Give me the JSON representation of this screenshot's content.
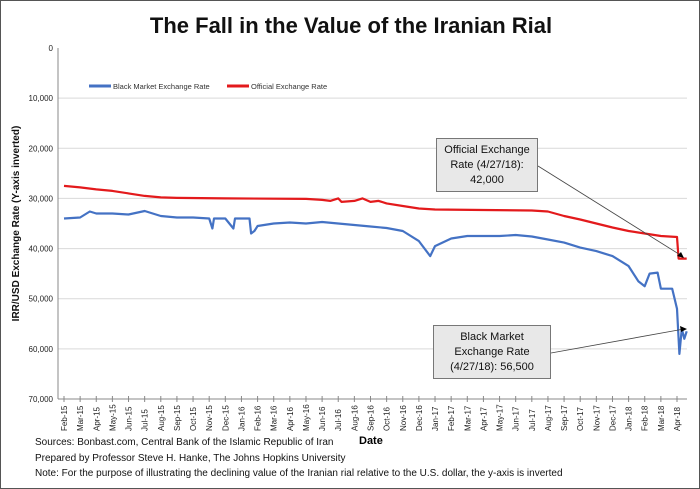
{
  "chart_data": {
    "type": "line",
    "title": "The Fall in the Value of the Iranian Rial",
    "xlabel": "Date",
    "ylabel": "IRR/USD Exchange  Rate (Y-axis inverted)",
    "ylim": [
      0,
      70000
    ],
    "y_inverted": true,
    "yticks": [
      "0",
      "10,000",
      "20,000",
      "30,000",
      "40,000",
      "50,000",
      "60,000",
      "70,000"
    ],
    "categories": [
      "Feb-15",
      "Mar-15",
      "Apr-15",
      "May-15",
      "Jun-15",
      "Jul-15",
      "Aug-15",
      "Sep-15",
      "Oct-15",
      "Nov-15",
      "Dec-15",
      "Jan-16",
      "Feb-16",
      "Mar-16",
      "Apr-16",
      "May-16",
      "Jun-16",
      "Jul-16",
      "Aug-16",
      "Sep-16",
      "Oct-16",
      "Nov-16",
      "Dec-16",
      "Jan-17",
      "Feb-17",
      "Mar-17",
      "Apr-17",
      "May-17",
      "Jun-17",
      "Jul-17",
      "Aug-17",
      "Sep-17",
      "Oct-17",
      "Nov-17",
      "Dec-17",
      "Jan-18",
      "Feb-18",
      "Mar-18",
      "Apr-18"
    ],
    "grid": true,
    "legend": "top-left",
    "series": [
      {
        "name": "Black Market Exchange Rate",
        "color": "#4472c4",
        "points": [
          [
            0,
            34000
          ],
          [
            1,
            33800
          ],
          [
            1.6,
            32600
          ],
          [
            2,
            33000
          ],
          [
            3,
            33000
          ],
          [
            4,
            33200
          ],
          [
            5,
            32500
          ],
          [
            6,
            33500
          ],
          [
            7,
            33800
          ],
          [
            8,
            33800
          ],
          [
            9,
            34000
          ],
          [
            9.2,
            36000
          ],
          [
            9.3,
            34000
          ],
          [
            10,
            34000
          ],
          [
            10.5,
            36000
          ],
          [
            10.6,
            34000
          ],
          [
            11,
            34000
          ],
          [
            11.5,
            34000
          ],
          [
            11.6,
            37000
          ],
          [
            11.8,
            36500
          ],
          [
            12,
            35500
          ],
          [
            13,
            35000
          ],
          [
            14,
            34800
          ],
          [
            15,
            35000
          ],
          [
            16,
            34700
          ],
          [
            17,
            35000
          ],
          [
            18,
            35300
          ],
          [
            19,
            35600
          ],
          [
            20,
            35900
          ],
          [
            21,
            36500
          ],
          [
            22,
            38500
          ],
          [
            22.7,
            41500
          ],
          [
            23,
            39500
          ],
          [
            24,
            38000
          ],
          [
            25,
            37500
          ],
          [
            26,
            37500
          ],
          [
            27,
            37500
          ],
          [
            28,
            37300
          ],
          [
            29,
            37600
          ],
          [
            30,
            38200
          ],
          [
            31,
            38800
          ],
          [
            32,
            39800
          ],
          [
            33,
            40500
          ],
          [
            34,
            41500
          ],
          [
            35,
            43500
          ],
          [
            35.6,
            46500
          ],
          [
            36,
            47500
          ],
          [
            36.3,
            45000
          ],
          [
            36.8,
            44800
          ],
          [
            37,
            48000
          ],
          [
            37.7,
            48000
          ],
          [
            38,
            52000
          ],
          [
            38.15,
            61000
          ],
          [
            38.3,
            56000
          ],
          [
            38.45,
            58000
          ],
          [
            38.6,
            56500
          ]
        ]
      },
      {
        "name": "Official Exchange Rate",
        "color": "#e31a1c",
        "points": [
          [
            0,
            27500
          ],
          [
            1,
            27800
          ],
          [
            2,
            28200
          ],
          [
            3,
            28500
          ],
          [
            4,
            29000
          ],
          [
            5,
            29500
          ],
          [
            6,
            29800
          ],
          [
            7,
            29900
          ],
          [
            10,
            30000
          ],
          [
            15,
            30100
          ],
          [
            16,
            30300
          ],
          [
            16.5,
            30500
          ],
          [
            17,
            30000
          ],
          [
            17.2,
            30700
          ],
          [
            18,
            30500
          ],
          [
            18.5,
            30000
          ],
          [
            19,
            30700
          ],
          [
            19.5,
            30500
          ],
          [
            20,
            31000
          ],
          [
            21,
            31500
          ],
          [
            22,
            32000
          ],
          [
            23,
            32200
          ],
          [
            26,
            32300
          ],
          [
            29,
            32400
          ],
          [
            30,
            32600
          ],
          [
            31,
            33500
          ],
          [
            32,
            34200
          ],
          [
            33,
            35000
          ],
          [
            34,
            35800
          ],
          [
            35,
            36500
          ],
          [
            36,
            37000
          ],
          [
            37,
            37500
          ],
          [
            38,
            37700
          ],
          [
            38.1,
            42000
          ],
          [
            38.6,
            42000
          ]
        ]
      }
    ],
    "annotations": [
      {
        "label": "Official Exchange Rate (4/27/18): 42,000",
        "line1": "Official Exchange",
        "line2": "Rate (4/27/18):",
        "line3": "42,000"
      },
      {
        "label": "Black Market Exchange Rate (4/27/18): 56,500",
        "line1": "Black Market",
        "line2": "Exchange Rate",
        "line3": "(4/27/18): 56,500"
      }
    ]
  },
  "notes": {
    "sources": "Sources: Bonbast.com, Central Bank of the Islamic Republic of Iran",
    "prepared": "Prepared by Professor Steve H. Hanke, The Johns Hopkins University",
    "note": "Note: For the purpose of illustrating the declining value of the Iranian rial relative to the U.S. dollar, the y-axis is inverted"
  }
}
